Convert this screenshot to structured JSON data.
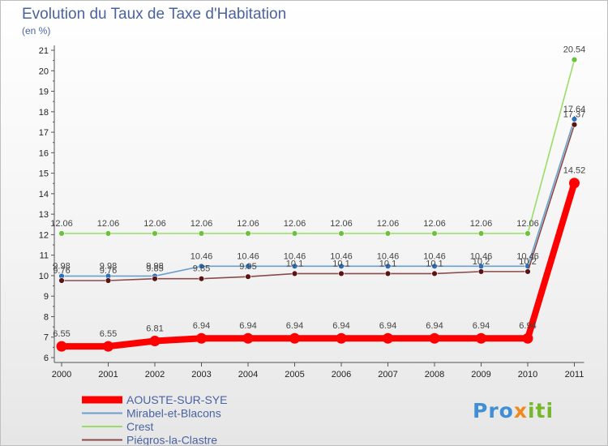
{
  "chart_data": {
    "type": "line",
    "title": "Evolution du Taux de Taxe d'Habitation",
    "unit_label": "(en %)",
    "ylim": [
      6,
      21
    ],
    "y_ticks": [
      6,
      7,
      8,
      9,
      10,
      11,
      12,
      13,
      14,
      15,
      16,
      17,
      18,
      19,
      20,
      21
    ],
    "x": [
      "2000",
      "2001",
      "2002",
      "2003",
      "2004",
      "2005",
      "2006",
      "2007",
      "2008",
      "2009",
      "2010",
      "2011"
    ],
    "series": [
      {
        "name": "AOUSTE-SUR-SYE",
        "color": "#ff0000",
        "values": [
          6.55,
          6.55,
          6.81,
          6.94,
          6.94,
          6.94,
          6.94,
          6.94,
          6.94,
          6.94,
          6.94,
          14.52
        ],
        "labels": [
          "6.55",
          "6.55",
          "6.81",
          "6.94",
          "6.94",
          "6.94",
          "6.94",
          "6.94",
          "6.94",
          "6.94",
          "6.94",
          "14.52"
        ]
      },
      {
        "name": "Mirabel-et-Blacons",
        "color": "#6aa0cc",
        "values": [
          9.98,
          9.98,
          9.98,
          10.46,
          10.46,
          10.46,
          10.46,
          10.46,
          10.46,
          10.46,
          10.46,
          17.64
        ],
        "labels": [
          "9.98",
          "9.98",
          "9.98",
          "10.46",
          "10.46",
          "10.46",
          "10.46",
          "10.46",
          "10.46",
          "10.46",
          "10.46",
          "17.64"
        ]
      },
      {
        "name": "Crest",
        "color": "#99dd66",
        "values": [
          12.06,
          12.06,
          12.06,
          12.06,
          12.06,
          12.06,
          12.06,
          12.06,
          12.06,
          12.06,
          12.06,
          20.54
        ],
        "labels": [
          "12.06",
          "12.06",
          "12.06",
          "12.06",
          "12.06",
          "12.06",
          "12.06",
          "12.06",
          "12.06",
          "12.06",
          "12.06",
          "20.54"
        ]
      },
      {
        "name": "Piégros-la-Clastre",
        "color": "#7a2a2a",
        "values": [
          9.76,
          9.76,
          9.85,
          9.85,
          9.95,
          10.1,
          10.1,
          10.1,
          10.1,
          10.2,
          10.2,
          17.37
        ],
        "labels": [
          "9.76",
          "9.76",
          "9.85",
          "9.85",
          "9.95",
          "10.1",
          "10.1",
          "10.1",
          "10.1",
          "10.2",
          "10.2",
          "17.37"
        ]
      }
    ],
    "legend_position": "bottom-left",
    "grid": false
  },
  "logo_text": [
    "Pro",
    "x",
    "iti"
  ]
}
